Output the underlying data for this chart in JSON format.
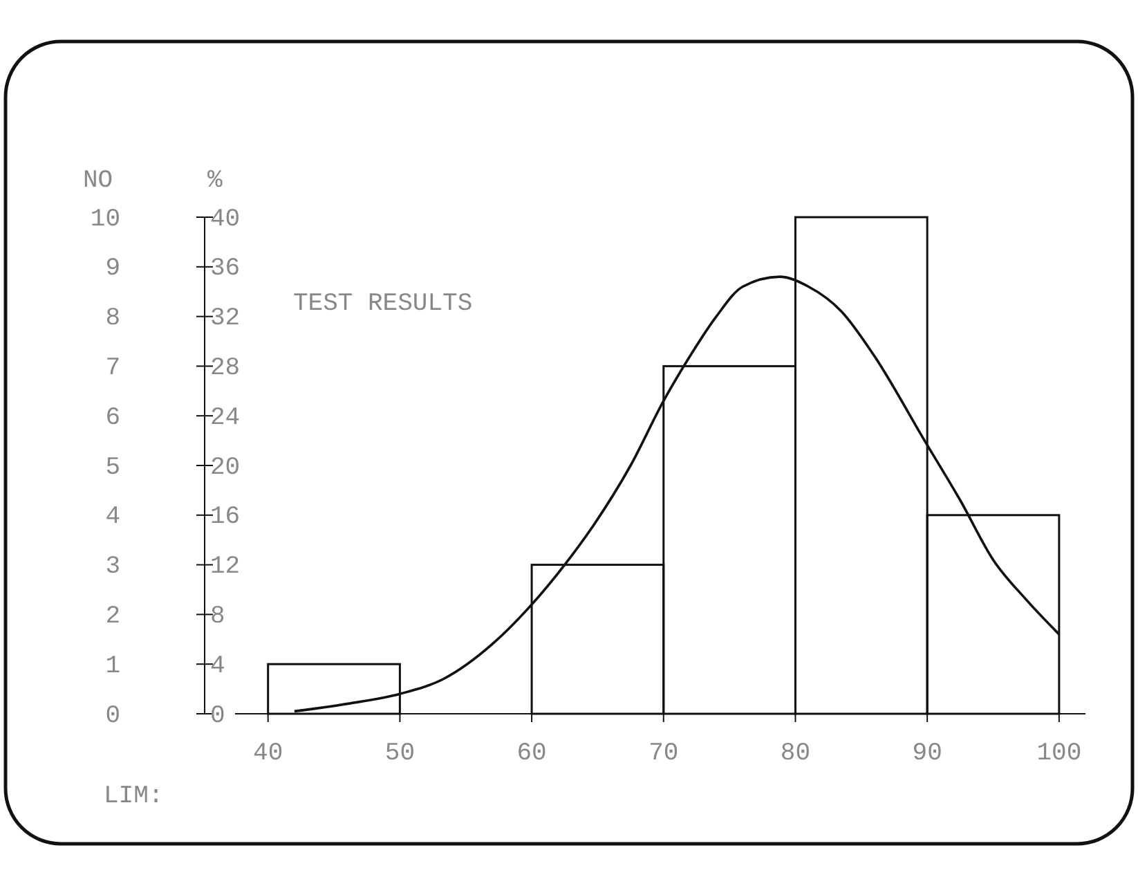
{
  "chart_data": {
    "type": "histogram",
    "title": "TEST RESULTS",
    "xlabel": "LIM:",
    "ylabel": "NO",
    "y2label": "%",
    "bins": [
      40,
      50,
      60,
      70,
      80,
      90,
      100
    ],
    "values": [
      1,
      0,
      3,
      7,
      10,
      4
    ],
    "color": "#111111",
    "series": [
      {
        "type": "line",
        "color": "#111111",
        "x": [
          42,
          46,
          50,
          53.3,
          57,
          60,
          62.5,
          64.7,
          67.5,
          70,
          72,
          74,
          76,
          78.8,
          81,
          83.5,
          86,
          89.8,
          92.5,
          95,
          97.5,
          100
        ],
        "values": [
          0.05,
          0.2,
          0.4,
          0.7,
          1.4,
          2.2,
          3.0,
          3.8,
          5.0,
          6.3,
          7.2,
          8.0,
          8.6,
          8.8,
          8.6,
          8.1,
          7.2,
          5.5,
          4.3,
          3.1,
          2.3,
          1.6
        ]
      }
    ],
    "xlim": [
      37.5,
      102
    ],
    "xticks": [
      40,
      50,
      60,
      70,
      80,
      90,
      100
    ],
    "ylim": [
      0,
      10
    ],
    "yticks": [
      0,
      1,
      2,
      3,
      4,
      5,
      6,
      7,
      8,
      9,
      10
    ],
    "y2lim": [
      0,
      40
    ],
    "y2ticks": [
      0,
      4,
      8,
      12,
      16,
      20,
      24,
      28,
      32,
      36,
      40
    ],
    "grid": false
  }
}
